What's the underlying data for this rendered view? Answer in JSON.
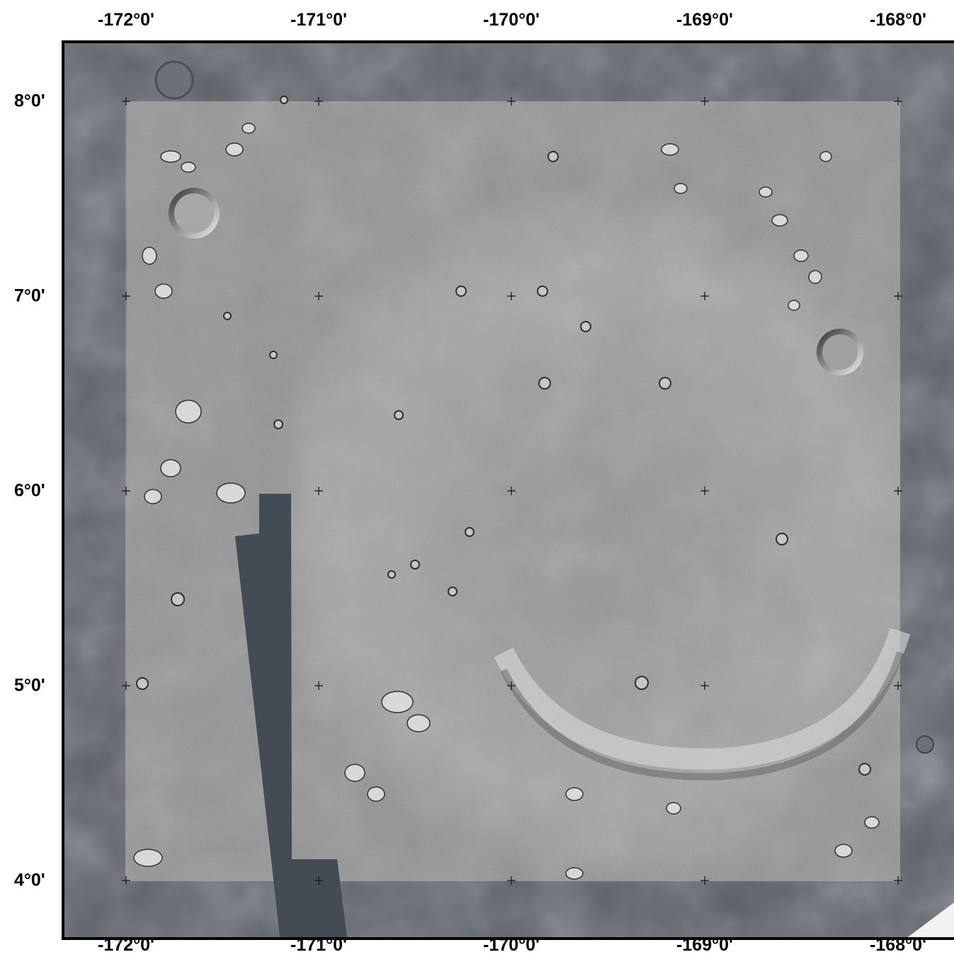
{
  "map": {
    "colors": {
      "frame_background": "#5b6068",
      "image_gray": "#8e8e8e",
      "gap_strip": "#444b54",
      "frame_border": "#000000"
    },
    "longitude_labels": [
      "-172°0'",
      "-171°0'",
      "-170°0'",
      "-169°0'",
      "-168°0'"
    ],
    "latitude_labels": [
      "8°0'",
      "7°0'",
      "6°0'",
      "5°0'",
      "4°0'"
    ],
    "grid_marks": "cross"
  }
}
